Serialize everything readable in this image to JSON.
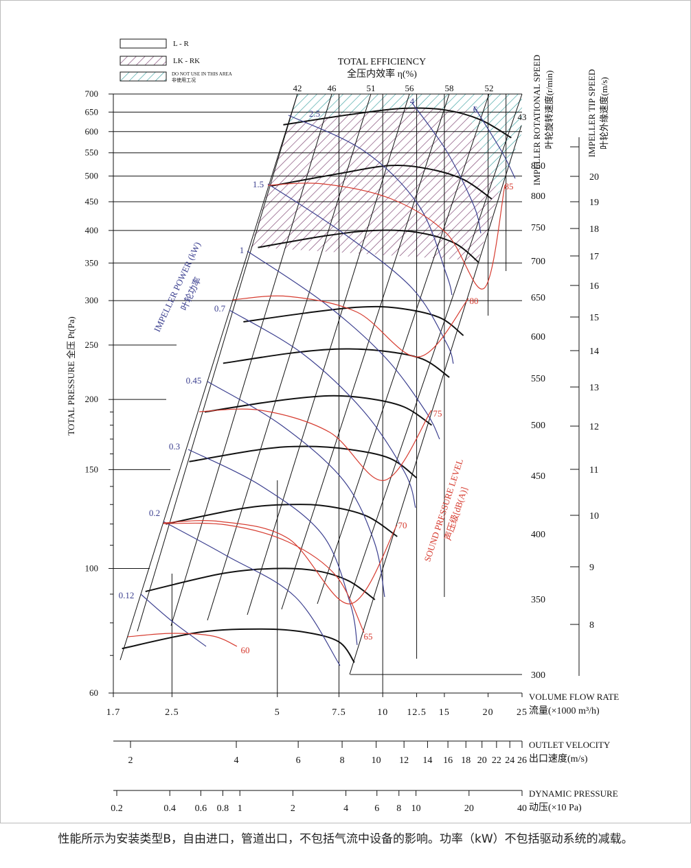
{
  "chart_data": {
    "type": "line",
    "legend": [
      {
        "label": "L - R",
        "style": "plain"
      },
      {
        "label": "LK - RK",
        "style": "purple-hatch"
      },
      {
        "label": "DO NOT USE IN THIS AREA",
        "label2": "非使用工况",
        "style": "teal-hatch"
      }
    ],
    "colors": {
      "pressure_curves": "#111111",
      "power": "#3b3f8f",
      "sound": "#d63a2e",
      "lk_hatch": "#7a3f6e",
      "no_use_hatch": "#3aa0a0",
      "grid": "#111111"
    },
    "y_axis": {
      "title": "TOTAL PRESSURE 全压 Pt(Pa)",
      "scale": "log",
      "range": [
        60,
        700
      ],
      "ticks": [
        60,
        100,
        150,
        200,
        250,
        300,
        350,
        400,
        450,
        500,
        550,
        600,
        650,
        700
      ]
    },
    "x_axis": {
      "title": "VOLUME FLOW RATE",
      "title2": "流量(×1000 m³/h)",
      "scale": "log",
      "range": [
        1.7,
        25
      ],
      "ticks": [
        1.7,
        2.5,
        5,
        7.5,
        10,
        12.5,
        15,
        20,
        25
      ],
      "tick_labels": [
        "1.7",
        "2.5",
        "5",
        "7.5",
        "10",
        "12.5",
        "15",
        "20",
        "25"
      ]
    },
    "outlet_velocity_axis": {
      "title": "OUTLET VELOCITY",
      "title2": "出口速度(m/s)",
      "ticks": [
        2,
        4,
        6,
        8,
        10,
        12,
        14,
        16,
        18,
        20,
        22,
        24,
        26
      ]
    },
    "dynamic_pressure_axis": {
      "title": "DYNAMIC PRESSURE",
      "title2": "动压(×10 Pa)",
      "ticks": [
        0.2,
        0.4,
        0.6,
        0.8,
        1,
        2,
        4,
        6,
        8,
        10,
        20,
        40
      ],
      "tick_labels": [
        "0.2",
        "0.4",
        "0.6",
        "0.8",
        "1",
        "2",
        "4",
        "6",
        "8",
        "10",
        "20",
        "40"
      ]
    },
    "efficiency": {
      "title": "TOTAL EFFICIENCY",
      "title2": "全压内效率 η(%)",
      "labels": [
        "42",
        "46",
        "51",
        "56",
        "58",
        "52",
        "43"
      ]
    },
    "rotational_speed": {
      "title": "IMPELLER ROTATIONAL SPEED",
      "title2": "叶轮旋转速度(r/min)",
      "values": [
        300,
        350,
        400,
        450,
        500,
        550,
        600,
        650,
        700,
        750,
        800,
        850
      ]
    },
    "tip_speed": {
      "title": "IMPELLER TIP SPEED",
      "title2": "叶轮外缘速度(m/s)",
      "values": [
        8,
        9,
        10,
        11,
        12,
        13,
        14,
        15,
        16,
        17,
        18,
        19,
        20
      ]
    },
    "power": {
      "title": "IMPELLER POWER (kW)",
      "title2": "叶轮功率",
      "labels": [
        "0.12",
        "0.2",
        "0.3",
        "0.45",
        "0.7",
        "1",
        "1.5",
        "2.5",
        "4",
        "6"
      ]
    },
    "sound": {
      "title": "SOUND PRESSURE LEVEL",
      "title2": "声压级[dB(A)]",
      "labels": [
        "60",
        "65",
        "70",
        "75",
        "80",
        "85"
      ]
    },
    "pressure_curves": [
      {
        "rpm": 300,
        "points": [
          [
            1.8,
            72
          ],
          [
            3,
            77
          ],
          [
            4.5,
            78
          ],
          [
            6,
            77
          ],
          [
            7.5,
            74
          ],
          [
            8.3,
            68
          ]
        ]
      },
      {
        "rpm": 350,
        "points": [
          [
            2.1,
            91
          ],
          [
            3.5,
            98
          ],
          [
            5,
            100
          ],
          [
            6.5,
            99
          ],
          [
            8,
            95
          ],
          [
            9.5,
            88
          ]
        ]
      },
      {
        "rpm": 400,
        "points": [
          [
            2.4,
            120
          ],
          [
            4,
            128
          ],
          [
            5.5,
            130
          ],
          [
            7,
            129
          ],
          [
            9,
            124
          ],
          [
            11,
            114
          ]
        ]
      },
      {
        "rpm": 450,
        "points": [
          [
            2.8,
            155
          ],
          [
            4.5,
            163
          ],
          [
            6,
            165
          ],
          [
            8,
            163
          ],
          [
            10.5,
            157
          ],
          [
            12.5,
            145
          ]
        ]
      },
      {
        "rpm": 500,
        "points": [
          [
            3.1,
            190
          ],
          [
            5,
            199
          ],
          [
            7,
            203
          ],
          [
            9,
            201
          ],
          [
            11.5,
            194
          ],
          [
            13.8,
            180
          ]
        ]
      },
      {
        "rpm": 550,
        "points": [
          [
            3.5,
            232
          ],
          [
            5.5,
            242
          ],
          [
            7.5,
            246
          ],
          [
            10,
            244
          ],
          [
            13,
            236
          ],
          [
            15.5,
            219
          ]
        ]
      },
      {
        "rpm": 600,
        "points": [
          [
            4,
            275
          ],
          [
            6,
            285
          ],
          [
            8.5,
            292
          ],
          [
            11,
            291
          ],
          [
            14.5,
            280
          ],
          [
            17,
            260
          ]
        ]
      },
      {
        "rpm": 700,
        "points": [
          [
            4.4,
            373
          ],
          [
            7,
            392
          ],
          [
            9.5,
            400
          ],
          [
            12.5,
            397
          ],
          [
            16,
            380
          ],
          [
            18.8,
            351
          ]
        ]
      },
      {
        "rpm": 800,
        "points": [
          [
            4.8,
            480
          ],
          [
            7.5,
            505
          ],
          [
            10.5,
            522
          ],
          [
            13.5,
            515
          ],
          [
            17,
            493
          ],
          [
            20.5,
            455
          ]
        ]
      },
      {
        "rpm": 850,
        "points": [
          [
            5.2,
            617
          ],
          [
            8.3,
            645
          ],
          [
            11.5,
            660
          ],
          [
            15,
            656
          ],
          [
            19,
            630
          ],
          [
            23.3,
            585
          ]
        ]
      }
    ]
  }
}
